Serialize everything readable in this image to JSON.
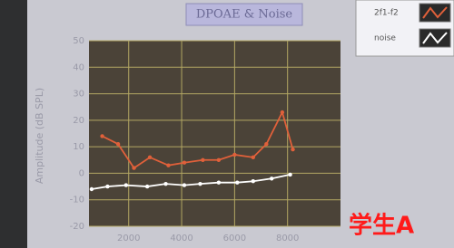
{
  "chart_data": {
    "type": "line",
    "title": "DPOAE & Noise",
    "y_label": "Amplitude (dB SPL)",
    "annotation": "学生A",
    "series": [
      {
        "name": "2f1-f2",
        "color": "#e0603a",
        "x": [
          1000,
          1600,
          2200,
          2800,
          3500,
          4100,
          4800,
          5400,
          6000,
          6700,
          7200,
          7800,
          8200
        ],
        "values": [
          14,
          11,
          2,
          6,
          3,
          4,
          5,
          5,
          7,
          6,
          11,
          23,
          9
        ]
      },
      {
        "name": "noise",
        "color": "#ffffff",
        "x": [
          600,
          1200,
          1900,
          2700,
          3400,
          4100,
          4700,
          5400,
          6100,
          6700,
          7400,
          8100
        ],
        "values": [
          -6,
          -5,
          -4.5,
          -5,
          -4,
          -4.5,
          -4,
          -3.5,
          -3.5,
          -3,
          -2,
          -0.5
        ]
      }
    ],
    "xlim": [
      500,
      10000
    ],
    "xticks": [
      2000,
      4000,
      6000,
      8000
    ],
    "ylim": [
      -20,
      50
    ],
    "yticks": [
      -20,
      -10,
      0,
      10,
      20,
      30,
      40,
      50
    ],
    "grid": true
  }
}
